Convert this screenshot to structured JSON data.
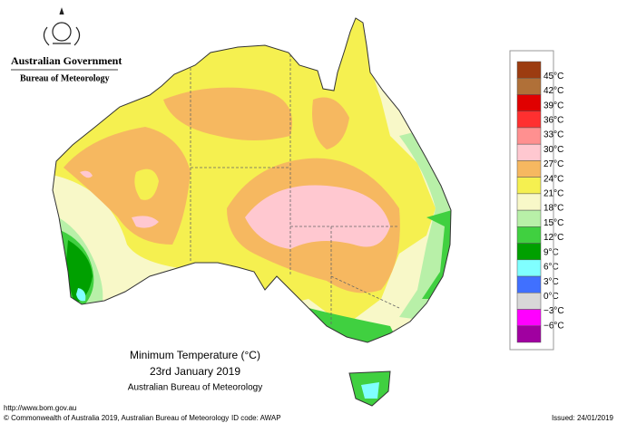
{
  "header": {
    "government": "Australian Government",
    "bureau": "Bureau of Meteorology"
  },
  "map": {
    "title": "Minimum Temperature (°C)",
    "date": "23rd January 2019",
    "source": "Australian Bureau of Meteorology"
  },
  "legend": {
    "colors": [
      "#9c3c10",
      "#b07038",
      "#e00000",
      "#ff3030",
      "#ff9090",
      "#ffc8d0",
      "#f6b860",
      "#f5f050",
      "#f8f8c8",
      "#b8f0a8",
      "#40d040",
      "#00a000",
      "#80ffff",
      "#4070ff",
      "#d8d8d8",
      "#ff00ff",
      "#a000a0"
    ],
    "labels": [
      "45°C",
      "42°C",
      "39°C",
      "36°C",
      "33°C",
      "30°C",
      "27°C",
      "24°C",
      "21°C",
      "18°C",
      "15°C",
      "12°C",
      "9°C",
      "6°C",
      "3°C",
      "0°C",
      "−3°C",
      "−6°C"
    ]
  },
  "footer": {
    "url": "http://www.bom.gov.au",
    "copyright": "© Commonwealth of Australia 2019, Australian Bureau of Meteorology",
    "id": "ID code: AWAP",
    "issued": "Issued: 24/01/2019"
  }
}
